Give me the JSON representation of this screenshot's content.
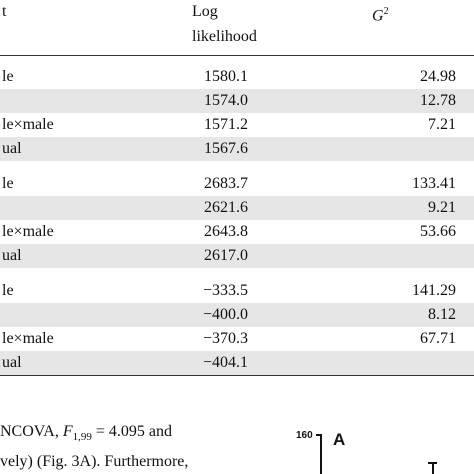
{
  "table": {
    "header": {
      "effect": "t",
      "ll_line1": "Log",
      "ll_line2": "likelihood",
      "g2_symbol": "G",
      "g2_sup": "2"
    },
    "groups": [
      {
        "rows": [
          [
            "le",
            "1580.1",
            "24.98"
          ],
          [
            "",
            "1574.0",
            "12.78"
          ],
          [
            "le×male",
            "1571.2",
            "7.21"
          ],
          [
            "ual",
            "1567.6",
            null
          ]
        ]
      },
      {
        "rows": [
          [
            "le",
            "2683.7",
            "133.41"
          ],
          [
            "",
            "2621.6",
            "9.21"
          ],
          [
            "le×male",
            "2643.8",
            "53.66"
          ],
          [
            "ual",
            "2617.0",
            null
          ]
        ]
      },
      {
        "rows": [
          [
            "le",
            "−333.5",
            "141.29"
          ],
          [
            "",
            "−400.0",
            "8.12"
          ],
          [
            "le×male",
            "−370.3",
            "67.71"
          ],
          [
            "ual",
            "−404.1",
            null
          ]
        ]
      }
    ]
  },
  "paragraph": {
    "line1_pre": "NCOVA, ",
    "line1_f": "F",
    "line1_sub": "1,99",
    "line1_post": " = 4.095 and",
    "line2": "vely) (Fig. 3A). Furthermore,"
  },
  "figure": {
    "y_top_tick": "160",
    "panel_label": "A"
  }
}
